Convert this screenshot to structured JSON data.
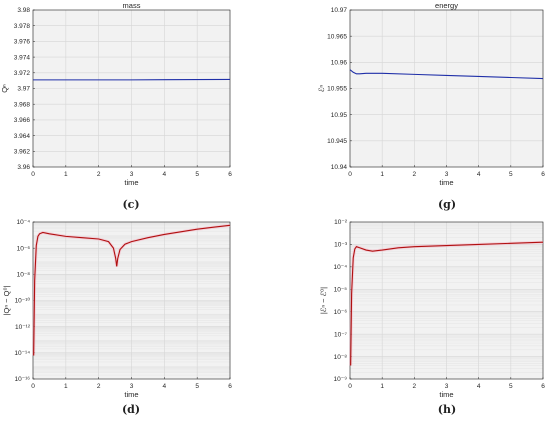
{
  "chart_data": [
    {
      "id": "c",
      "type": "line",
      "title": "mass",
      "xlabel": "time",
      "ylabel": "Qⁿ",
      "panel_label": "(c)",
      "scale": "linear",
      "xlim": [
        0,
        6
      ],
      "ylim": [
        3.96,
        3.98
      ],
      "xticks": [
        0,
        1,
        2,
        3,
        4,
        5,
        6
      ],
      "xtick_labels": [
        "0",
        "1",
        "2",
        "3",
        "4",
        "5",
        "6"
      ],
      "yticks": [
        3.96,
        3.962,
        3.964,
        3.966,
        3.968,
        3.97,
        3.972,
        3.974,
        3.976,
        3.978,
        3.98
      ],
      "ytick_labels": [
        "3.96",
        "3.962",
        "3.964",
        "3.966",
        "3.968",
        "3.97",
        "3.972",
        "3.974",
        "3.976",
        "3.978",
        "3.98"
      ],
      "grid": true,
      "series": [
        {
          "color": "#1f2fa8",
          "x": [
            0,
            1,
            2,
            3,
            4,
            5,
            6
          ],
          "y": [
            3.9711,
            3.9711,
            3.9711,
            3.9711,
            3.97112,
            3.97114,
            3.97116
          ]
        }
      ]
    },
    {
      "id": "g",
      "type": "line",
      "title": "energy",
      "xlabel": "time",
      "ylabel": "ℰⁿ",
      "panel_label": "(g)",
      "scale": "linear",
      "xlim": [
        0,
        6
      ],
      "ylim": [
        10.94,
        10.97
      ],
      "xticks": [
        0,
        1,
        2,
        3,
        4,
        5,
        6
      ],
      "xtick_labels": [
        "0",
        "1",
        "2",
        "3",
        "4",
        "5",
        "6"
      ],
      "yticks": [
        10.94,
        10.945,
        10.95,
        10.955,
        10.96,
        10.965,
        10.97
      ],
      "ytick_labels": [
        "10.94",
        "10.945",
        "10.95",
        "10.955",
        "10.96",
        "10.965",
        "10.97"
      ],
      "grid": true,
      "series": [
        {
          "color": "#1f2fa8",
          "x": [
            0,
            0.1,
            0.2,
            0.3,
            0.5,
            1,
            2,
            3,
            4,
            5,
            6
          ],
          "y": [
            10.9586,
            10.9581,
            10.9578,
            10.9578,
            10.9579,
            10.9579,
            10.9577,
            10.9575,
            10.9573,
            10.9571,
            10.9569
          ]
        }
      ]
    },
    {
      "id": "d",
      "type": "line",
      "title": "",
      "xlabel": "time",
      "ylabel": "|Qⁿ − Q⁰|",
      "panel_label": "(d)",
      "scale": "log",
      "xlim": [
        0,
        6
      ],
      "ylim": [
        -16,
        -4
      ],
      "xticks": [
        0,
        1,
        2,
        3,
        4,
        5,
        6
      ],
      "xtick_labels": [
        "0",
        "1",
        "2",
        "3",
        "4",
        "5",
        "6"
      ],
      "yticks": [
        -16,
        -14,
        -12,
        -10,
        -8,
        -6,
        -4
      ],
      "ytick_labels": [
        "10⁻¹⁶",
        "10⁻¹⁴",
        "10⁻¹²",
        "10⁻¹⁰",
        "10⁻⁸",
        "10⁻⁶",
        "10⁻⁴"
      ],
      "grid": true,
      "series": [
        {
          "color": "#b01010",
          "x": [
            0.02,
            0.05,
            0.1,
            0.15,
            0.2,
            0.3,
            0.5,
            1.0,
            1.5,
            2.0,
            2.3,
            2.45,
            2.52,
            2.55,
            2.58,
            2.65,
            2.8,
            3.0,
            3.5,
            4.0,
            4.5,
            5.0,
            5.5,
            6.0
          ],
          "y": [
            -14.2,
            -8.5,
            -5.8,
            -5.1,
            -4.9,
            -4.8,
            -4.9,
            -5.1,
            -5.2,
            -5.3,
            -5.5,
            -6.0,
            -6.8,
            -7.4,
            -6.8,
            -6.1,
            -5.7,
            -5.5,
            -5.2,
            -4.95,
            -4.75,
            -4.55,
            -4.4,
            -4.25
          ]
        }
      ]
    },
    {
      "id": "h",
      "type": "line",
      "title": "",
      "xlabel": "time",
      "ylabel": "|ℰⁿ − ℰ⁰|",
      "panel_label": "(h)",
      "scale": "log",
      "xlim": [
        0,
        6
      ],
      "ylim": [
        -9,
        -2
      ],
      "xticks": [
        0,
        1,
        2,
        3,
        4,
        5,
        6
      ],
      "xtick_labels": [
        "0",
        "1",
        "2",
        "3",
        "4",
        "5",
        "6"
      ],
      "yticks": [
        -9,
        -8,
        -7,
        -6,
        -5,
        -4,
        -3,
        -2
      ],
      "ytick_labels": [
        "10⁻⁹",
        "10⁻⁸",
        "10⁻⁷",
        "10⁻⁶",
        "10⁻⁵",
        "10⁻⁴",
        "10⁻³",
        "10⁻²"
      ],
      "grid": true,
      "series": [
        {
          "color": "#b01010",
          "x": [
            0.02,
            0.05,
            0.1,
            0.15,
            0.2,
            0.3,
            0.5,
            0.7,
            1.0,
            1.5,
            2.0,
            3.0,
            4.0,
            5.0,
            6.0
          ],
          "y": [
            -8.4,
            -5.2,
            -3.6,
            -3.2,
            -3.1,
            -3.15,
            -3.25,
            -3.3,
            -3.25,
            -3.15,
            -3.1,
            -3.05,
            -3.0,
            -2.95,
            -2.9
          ]
        }
      ]
    }
  ]
}
